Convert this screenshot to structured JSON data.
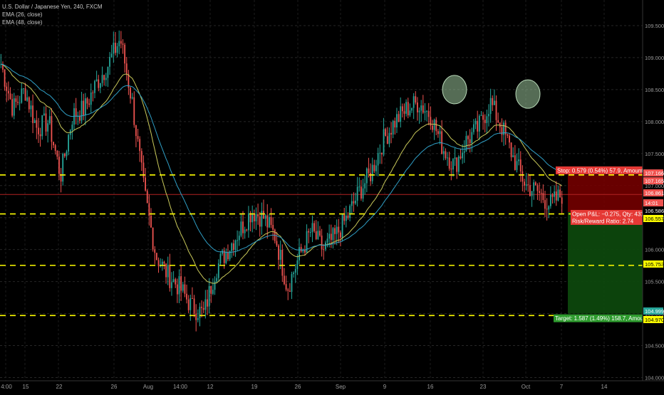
{
  "header": {
    "symbol_title": "U.S. Dollar / Japanese Yen, 240, FXCM",
    "indicators": [
      "EMA (26, close)",
      "EMA (48, close)"
    ]
  },
  "colors": {
    "background": "#000000",
    "up_candle": "#26a69a",
    "down_candle": "#ef5350",
    "ema26": "#c9c95a",
    "ema48": "#2f9fc6",
    "level_line": "#ffff00",
    "stop_zone": "#7a0000",
    "target_zone": "#0d4a0d",
    "price_line": "#b22222",
    "marker": "#9bc49b"
  },
  "chart_data": {
    "type": "candlestick",
    "title": "U.S. Dollar / Japanese Yen, 240, FXCM",
    "y_ticks": [
      104.0,
      104.5,
      105.0,
      105.5,
      106.0,
      106.5,
      107.0,
      107.5,
      108.0,
      108.5,
      109.0,
      109.5
    ],
    "ylim": [
      103.95,
      109.9
    ],
    "x_ticks": [
      "4:00",
      "15",
      "22",
      "26",
      "Aug",
      "14:00",
      "12",
      "19",
      "26",
      "Sep",
      "9",
      "16",
      "23",
      "Oct",
      "7",
      "14"
    ],
    "grid": true,
    "horizontal_levels": [
      107.166,
      106.557,
      105.753,
      104.97
    ],
    "current_price": 106.861,
    "countdown": "14:01",
    "axis_labels": [
      {
        "text": "107.166",
        "value": 107.166,
        "color": "#ef5350"
      },
      {
        "text": "107.165",
        "value": 107.165,
        "color": "#ef5350"
      },
      {
        "text": "106.861",
        "value": 106.861,
        "color": "#ef5350"
      },
      {
        "text": "14:01",
        "value": 106.861,
        "color": "#ef5350"
      },
      {
        "text": "106.586",
        "value": 106.586,
        "color": "#ffffff"
      },
      {
        "text": "106.557",
        "value": 106.557,
        "color": "#ffff00"
      },
      {
        "text": "105.753",
        "value": 105.753,
        "color": "#ffff00"
      },
      {
        "text": "104.999",
        "value": 104.999,
        "color": "#26a69a"
      },
      {
        "text": "104.970",
        "value": 104.97,
        "color": "#ffff00"
      }
    ],
    "position": {
      "entry": 106.586,
      "stop": 107.166,
      "target": 104.999,
      "stop_label": "Stop: 0.579 (0.54%) 57.9, Amount: 7",
      "open_label": "Open P&L: −0.275, Qty: 431",
      "ratio_label": "Risk/Reward Ratio: 2.74",
      "target_label": "Target: 1.587 (1.49%) 158.7, Amount"
    },
    "anchors": [
      [
        108.9,
        1
      ],
      [
        108.2,
        2
      ],
      [
        108.5,
        3
      ],
      [
        107.9,
        4
      ],
      [
        108.0,
        5
      ],
      [
        107.15,
        6
      ],
      [
        108.1,
        7
      ],
      [
        108.2,
        8
      ],
      [
        108.6,
        9
      ],
      [
        108.9,
        10
      ],
      [
        109.3,
        11
      ],
      [
        108.3,
        12
      ],
      [
        106.9,
        13
      ],
      [
        105.9,
        14
      ],
      [
        105.6,
        15
      ],
      [
        105.4,
        16
      ],
      [
        105.1,
        17
      ],
      [
        105.0,
        18
      ],
      [
        105.7,
        19
      ],
      [
        106.0,
        20
      ],
      [
        106.3,
        21
      ],
      [
        106.6,
        22
      ],
      [
        106.5,
        23
      ],
      [
        106.2,
        24
      ],
      [
        105.4,
        25
      ],
      [
        105.9,
        26
      ],
      [
        106.3,
        27
      ],
      [
        106.0,
        28
      ],
      [
        106.2,
        29
      ],
      [
        106.5,
        30
      ],
      [
        106.9,
        31
      ],
      [
        107.2,
        32
      ],
      [
        107.7,
        33
      ],
      [
        108.0,
        34
      ],
      [
        108.2,
        35
      ],
      [
        108.3,
        36
      ],
      [
        108.1,
        37
      ],
      [
        107.6,
        38
      ],
      [
        107.3,
        39
      ],
      [
        107.7,
        40
      ],
      [
        107.9,
        41
      ],
      [
        108.3,
        42
      ],
      [
        107.9,
        43
      ],
      [
        107.4,
        44
      ],
      [
        107.0,
        45
      ],
      [
        106.9,
        46
      ],
      [
        106.7,
        47
      ],
      [
        106.86,
        48
      ]
    ],
    "markers": [
      {
        "label": "top-1",
        "value": 108.5
      },
      {
        "label": "top-2",
        "value": 108.43
      }
    ]
  }
}
